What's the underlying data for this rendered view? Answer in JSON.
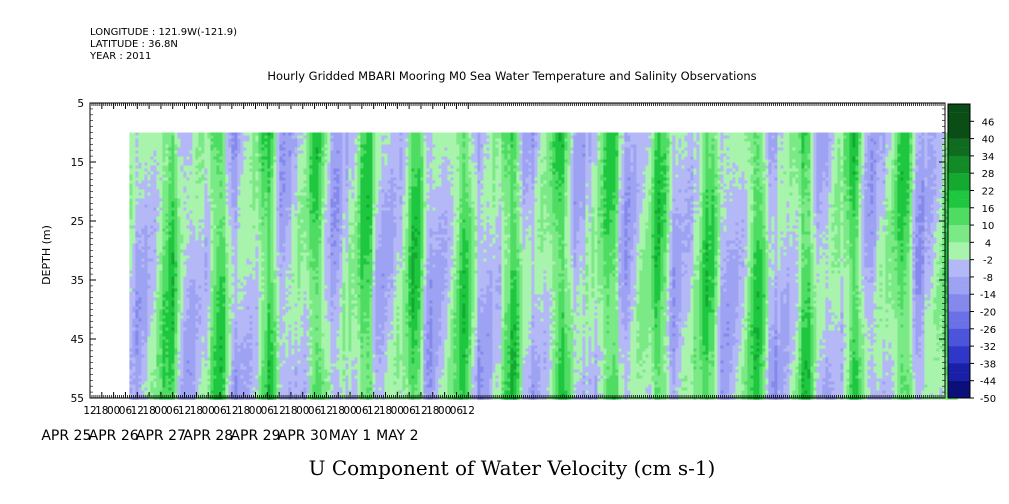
{
  "header": {
    "longitude": "LONGITUDE : 121.9W(-121.9)",
    "latitude": "LATITUDE : 36.8N",
    "year": "YEAR : 2011"
  },
  "chart_data": {
    "type": "heatmap",
    "title": "Hourly Gridded MBARI Mooring M0 Sea Water Temperature and Salinity Observations",
    "xlabel": "U Component of Water Velocity (cm s-1)",
    "ylabel": "DEPTH (m)",
    "x_hour_ticks": [
      "12",
      "18",
      "00",
      "06",
      "12",
      "18",
      "00",
      "06",
      "12",
      "18",
      "00",
      "06",
      "12",
      "18",
      "00",
      "06",
      "12",
      "18",
      "00",
      "06",
      "12",
      "18",
      "00",
      "06",
      "12",
      "18",
      "00",
      "06",
      "12",
      "18",
      "00",
      "06",
      "12"
    ],
    "x_date_labels": [
      "APR 25",
      "APR 26",
      "APR 27",
      "APR 28",
      "APR 29",
      "APR 30",
      "MAY  1",
      "MAY  2"
    ],
    "y_ticks": [
      5,
      15,
      25,
      35,
      45,
      55
    ],
    "ylim": [
      5,
      55
    ],
    "data_depth_range": [
      10,
      55
    ],
    "data_time_start": "APR 25 20:00",
    "data_time_end": "MAY 2 15:00",
    "colorbar": {
      "levels": [
        46,
        40,
        34,
        28,
        22,
        16,
        10,
        4,
        -2,
        -8,
        -14,
        -20,
        -26,
        -32,
        -38,
        -44,
        -50
      ],
      "range": [
        -50,
        52
      ]
    }
  }
}
